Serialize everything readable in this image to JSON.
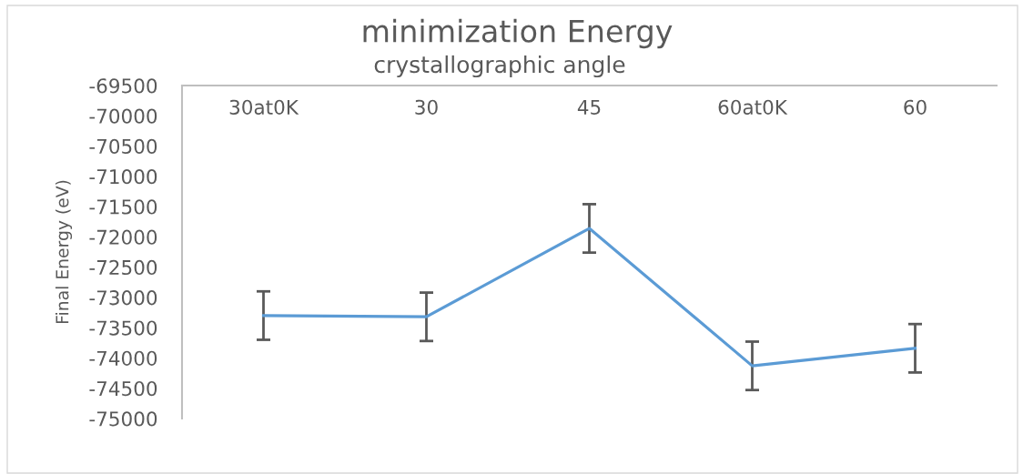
{
  "chart_data": {
    "type": "line",
    "title": "minimization Energy",
    "xlabel": "crystallographic angle",
    "ylabel": "Final Energy (eV)",
    "categories": [
      "30at0K",
      "30",
      "45",
      "60at0K",
      "60"
    ],
    "series": [
      {
        "color": "#5b9bd5",
        "values": [
          -73300,
          -73320,
          -71860,
          -74130,
          -73840
        ],
        "errors": [
          400,
          400,
          400,
          400,
          400
        ]
      }
    ],
    "ylim": [
      -75000,
      -69500
    ],
    "yticks": [
      -75000,
      -74500,
      -74000,
      -73500,
      -73000,
      -72500,
      -72000,
      -71500,
      -71000,
      -70500,
      -70000,
      -69500
    ],
    "grid": false,
    "marker": "none",
    "line_style": "solid"
  }
}
